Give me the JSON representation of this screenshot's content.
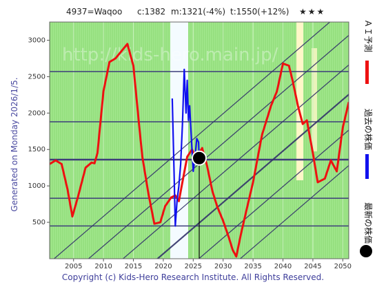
{
  "header": {
    "code_name": "4937=Waqoo",
    "current": "c:1382",
    "mid": "m:1321(-4%)",
    "target": "t:1550(+12%)",
    "rating": "★★★"
  },
  "side_label": "Generated on Monday 2026/1/5.",
  "legend": {
    "ai_forecast": "ＡＩ予測",
    "past_price": "過去の株価",
    "latest_price": "最新の株価"
  },
  "watermark": "http://kids-hero.main.jp/",
  "footer": "Copyright (c) Kids-Hero Research Institute. All Rights Reserved.",
  "colors": {
    "forecast": "#ee1111",
    "past": "#1111ee",
    "latest": "#000000",
    "band_green": "#8fe07a",
    "hlines": "#3c3c7a"
  },
  "chart_data": {
    "type": "line",
    "xlim": [
      2001,
      2051
    ],
    "ylim": [
      0,
      3250
    ],
    "x_ticks": [
      2005,
      2010,
      2015,
      2020,
      2025,
      2030,
      2035,
      2040,
      2045,
      2050
    ],
    "y_ticks": [
      500,
      1000,
      1500,
      2000,
      2500,
      3000
    ],
    "horizontal_levels": [
      2570,
      1880,
      1360,
      830,
      450
    ],
    "series": [
      {
        "key": "forecast",
        "x": [
          2001.0,
          2002.0,
          2003.0,
          2004.0,
          2004.8,
          2005.8,
          2007.0,
          2008.0,
          2008.5,
          2009.0,
          2009.5,
          2010.0,
          2011.0,
          2012.0,
          2013.0,
          2014.0,
          2015.0,
          2016.0,
          2016.5,
          2017.5,
          2018.5,
          2019.5,
          2020.3,
          2021.3,
          2022.0,
          2022.6,
          2023.3,
          2024.0,
          2024.8,
          2025.6,
          2026.0,
          2026.5,
          2027.3,
          2028.2,
          2029.0,
          2030.0,
          2031.0,
          2031.6,
          2032.2,
          2033.0,
          2034.0,
          2035.0,
          2036.5,
          2038.0,
          2039.0,
          2040.0,
          2041.0,
          2041.6,
          2042.5,
          2043.3,
          2044.0,
          2045.0,
          2045.8,
          2047.0,
          2048.0,
          2049.0,
          2050.0,
          2051.0
        ],
        "y": [
          1300,
          1350,
          1300,
          950,
          580,
          870,
          1250,
          1320,
          1310,
          1450,
          1880,
          2300,
          2700,
          2750,
          2850,
          2950,
          2650,
          1800,
          1400,
          900,
          480,
          500,
          720,
          840,
          870,
          790,
          1100,
          1400,
          1500,
          1350,
          1450,
          1520,
          1280,
          930,
          720,
          520,
          280,
          120,
          30,
          350,
          700,
          1050,
          1700,
          2100,
          2300,
          2680,
          2650,
          2450,
          2100,
          1850,
          1900,
          1450,
          1050,
          1100,
          1350,
          1200,
          1800,
          2150
        ]
      },
      {
        "key": "past",
        "x": [
          2021.5,
          2021.8,
          2022.0,
          2022.3,
          2022.6,
          2022.9,
          2023.2,
          2023.5,
          2023.8,
          2024.0,
          2024.2,
          2024.4,
          2024.7,
          2025.0,
          2025.3,
          2025.6,
          2025.9,
          2026.0
        ],
        "y": [
          2200,
          1200,
          450,
          800,
          1000,
          1300,
          1850,
          2600,
          2000,
          2450,
          1900,
          2100,
          1650,
          1200,
          1400,
          1650,
          1600,
          1382
        ]
      }
    ],
    "latest_point": {
      "x": 2026.0,
      "y": 1382
    }
  }
}
